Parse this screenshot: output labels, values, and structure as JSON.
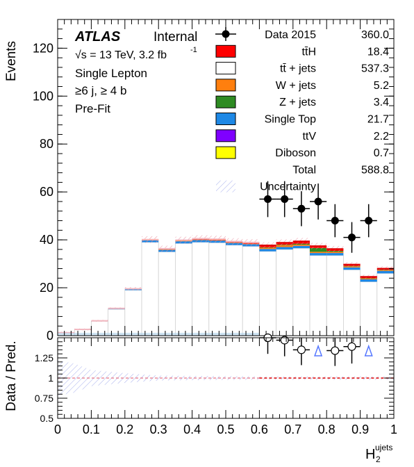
{
  "chart_data": {
    "type": "bar",
    "stacked": true,
    "histogram": true,
    "xlabel_main": "H",
    "xlabel_sub": "2",
    "xlabel_sup": "ujets",
    "ylabel": "Events",
    "ratio_ylabel": "Data / Pred.",
    "xlim": [
      0,
      1
    ],
    "ylim": [
      0,
      132
    ],
    "ratio_ylim": [
      0.5,
      1.5
    ],
    "x_ticks": [
      0,
      0.1,
      0.2,
      0.3,
      0.4,
      0.5,
      0.6,
      0.7,
      0.8,
      0.9,
      1
    ],
    "x_tick_labels": [
      "0",
      "0.1",
      "0.2",
      "0.3",
      "0.4",
      "0.5",
      "0.6",
      "0.7",
      "0.8",
      "0.9",
      "1"
    ],
    "y_ticks": [
      0,
      20,
      40,
      60,
      80,
      100,
      120
    ],
    "y_tick_labels": [
      "0",
      "20",
      "40",
      "60",
      "80",
      "100",
      "120"
    ],
    "ratio_ticks": [
      0.5,
      0.75,
      1,
      1.25
    ],
    "ratio_tick_labels": [
      "0.5",
      "0.75",
      "1",
      "1.25"
    ],
    "bin_edges": [
      0,
      0.05,
      0.1,
      0.15,
      0.2,
      0.25,
      0.3,
      0.35,
      0.4,
      0.45,
      0.5,
      0.55,
      0.6,
      0.65,
      0.7,
      0.75,
      0.8,
      0.85,
      0.9,
      0.95,
      1.0
    ],
    "blinded_until": 0.6,
    "series": [
      {
        "name": "ttbar_jets",
        "color": "#ffffff",
        "values": [
          1.2,
          2.5,
          6.0,
          11.0,
          19.0,
          39.0,
          35.0,
          38.5,
          39.0,
          38.8,
          37.8,
          37.3,
          35.2,
          36.0,
          36.5,
          33.5,
          33.5,
          27.5,
          22.5,
          26.0
        ]
      },
      {
        "name": "single_top",
        "color": "#1e88e5",
        "values": [
          0.05,
          0.1,
          0.2,
          0.4,
          0.6,
          0.8,
          0.8,
          0.9,
          0.9,
          0.9,
          0.9,
          0.9,
          1.0,
          1.0,
          1.0,
          1.0,
          1.0,
          1.0,
          1.0,
          1.0
        ]
      },
      {
        "name": "w_jets",
        "color": "#ff7f0e",
        "values": [
          0,
          0,
          0,
          0,
          0,
          0.1,
          0.2,
          0.2,
          0.2,
          0.2,
          0.2,
          0.2,
          0.5,
          0.8,
          0.5,
          0.5,
          0.5,
          0.4,
          0.3,
          0.3
        ]
      },
      {
        "name": "z_jets",
        "color": "#2e8b22",
        "values": [
          0,
          0,
          0,
          0,
          0,
          0,
          0,
          0,
          0,
          0,
          0,
          0,
          0.2,
          0.2,
          0.4,
          1.6,
          0.4,
          0.2,
          0.2,
          0.2
        ]
      },
      {
        "name": "tth",
        "color": "#ff0000",
        "values": [
          0,
          0,
          0,
          0,
          0,
          0.2,
          0.3,
          0.3,
          0.4,
          0.4,
          0.4,
          0.5,
          0.8,
          0.8,
          1.0,
          0.8,
          0.8,
          0.6,
          0.6,
          0.5
        ]
      }
    ],
    "data_points": [
      {
        "x": 0.625,
        "y": 57,
        "err": 7.5,
        "ratio": 1.5,
        "ratio_err": 0.2
      },
      {
        "x": 0.675,
        "y": 57,
        "err": 7.5,
        "ratio": 1.47,
        "ratio_err": 0.2
      },
      {
        "x": 0.725,
        "y": 53,
        "err": 7.3,
        "ratio": 1.35,
        "ratio_err": 0.19
      },
      {
        "x": 0.775,
        "y": 56,
        "err": 7.5,
        "ratio": null,
        "ratio_err": null,
        "arrow": true
      },
      {
        "x": 0.825,
        "y": 48,
        "err": 6.9,
        "ratio": 1.34,
        "ratio_err": 0.19
      },
      {
        "x": 0.875,
        "y": 41,
        "err": 6.4,
        "ratio": 1.39,
        "ratio_err": 0.21
      },
      {
        "x": 0.925,
        "y": 48,
        "err": 6.9,
        "ratio": null,
        "ratio_err": null,
        "arrow": true
      }
    ],
    "legend_position": "top-right",
    "legend": [
      {
        "kind": "marker",
        "label": "Data 2015",
        "value": "360.0",
        "color": "#000000"
      },
      {
        "kind": "box",
        "label": "tt̄H",
        "value": "18.4",
        "color": "#ff0000"
      },
      {
        "kind": "box",
        "label": "tt̄ + jets",
        "value": "537.3",
        "color": "#ffffff"
      },
      {
        "kind": "box",
        "label": "W + jets",
        "value": "5.2",
        "color": "#ff7f0e"
      },
      {
        "kind": "box",
        "label": "Z + jets",
        "value": "3.4",
        "color": "#2e8b22"
      },
      {
        "kind": "box",
        "label": "Single Top",
        "value": "21.7",
        "color": "#1e88e5"
      },
      {
        "kind": "box",
        "label": "ttV",
        "value": "2.2",
        "color": "#7f00ff"
      },
      {
        "kind": "box",
        "label": "Diboson",
        "value": "0.7",
        "color": "#ffff00"
      },
      {
        "kind": "none",
        "label": "Total",
        "value": "588.8",
        "color": ""
      },
      {
        "kind": "hatch",
        "label": "Uncertainty",
        "value": "",
        "color": "#5566dd"
      }
    ],
    "annotations": {
      "atlas": "ATLAS",
      "internal": "Internal",
      "energy": "√s = 13 TeV, 3.2 fb",
      "energy_sup": "-1",
      "channel": "Single Lepton",
      "region": "≥6 j, ≥ 4 b",
      "stage": "Pre-Fit"
    }
  }
}
